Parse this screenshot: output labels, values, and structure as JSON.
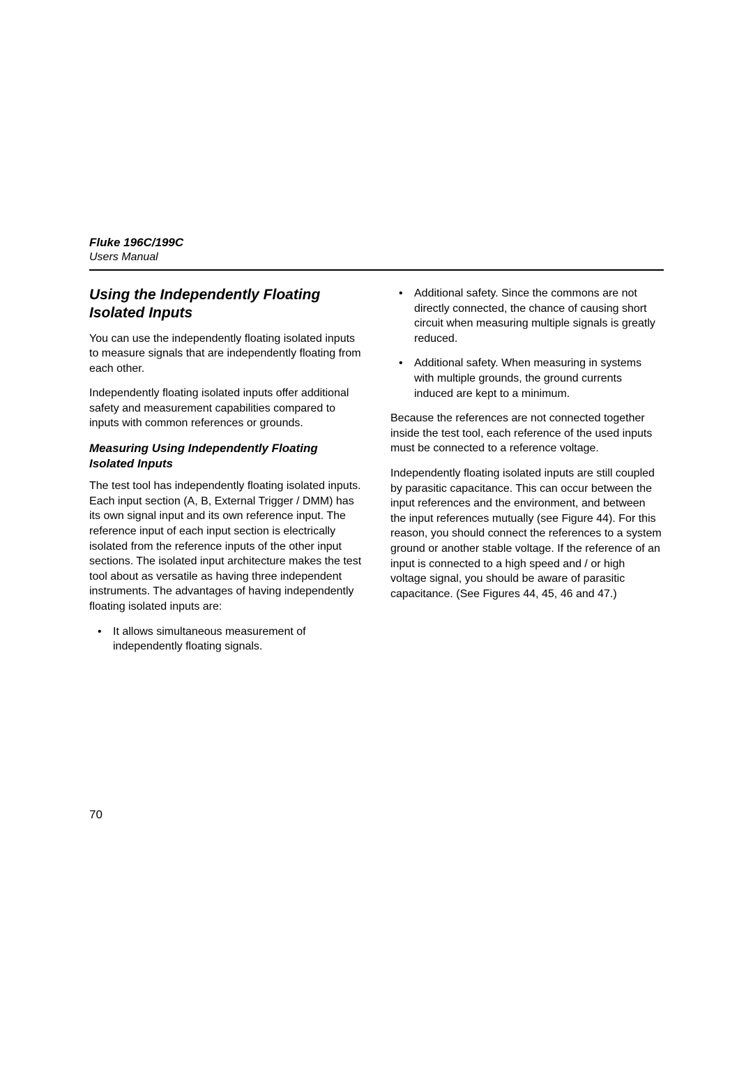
{
  "header": {
    "product": "Fluke 196C/199C",
    "doc_type": "Users Manual"
  },
  "left": {
    "section_title": "Using the Independently Floating Isolated Inputs",
    "p1": "You can use the independently floating isolated inputs to measure signals that are independently floating from each other.",
    "p2": "Independently floating isolated inputs offer additional safety and measurement capabilities compared to inputs with common references or grounds.",
    "subsection_title": "Measuring Using Independently Floating Isolated Inputs",
    "p3": "The test tool has independently floating isolated inputs. Each input section (A, B, External Trigger / DMM) has its own signal input and its own reference input. The reference input of each input section is electrically isolated from the reference inputs of the other input sections. The isolated input architecture makes the test tool about as versatile as having three independent instruments. The advantages of having independently floating isolated inputs are:",
    "bullets": [
      "It allows simultaneous measurement of independently floating signals."
    ]
  },
  "right": {
    "bullets": [
      "Additional safety. Since the commons are not directly connected, the chance of causing short circuit when measuring multiple signals is greatly reduced.",
      "Additional safety. When measuring in systems with multiple grounds, the ground currents induced are kept to a minimum."
    ],
    "p1": "Because the references are not connected together inside the test tool, each reference of the used inputs must be connected to a reference voltage.",
    "p2": "Independently floating isolated inputs are still coupled by parasitic capacitance. This can occur between the input references and the environment, and between the input references mutually (see Figure 44). For this reason, you should connect the references to a system ground or another stable voltage. If the reference of an input is connected to a high speed and / or high voltage signal, you should be aware of parasitic capacitance. (See Figures 44, 45, 46 and 47.)"
  },
  "page_number": "70"
}
